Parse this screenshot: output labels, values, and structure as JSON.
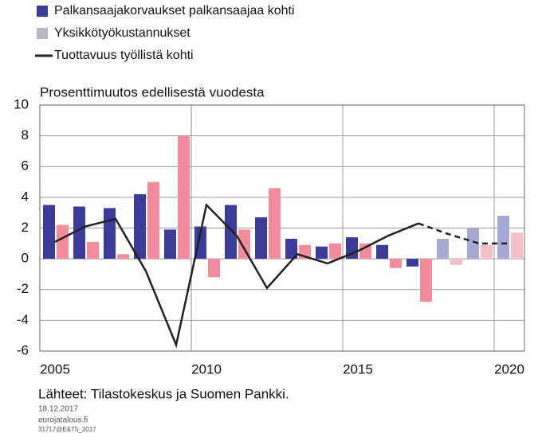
{
  "chart_data": {
    "type": "bar_line",
    "y_axis_title": "Prosenttimuutos edellisestä vuodesta",
    "categories": [
      "2005",
      null,
      null,
      null,
      null,
      "2010",
      null,
      null,
      null,
      null,
      "2015",
      null,
      null,
      null,
      null,
      "2020"
    ],
    "series": [
      {
        "name": "Palkansaajakorvaukset palkansaajaa kohti",
        "type": "bar",
        "color": "#3b3b98",
        "forecast_color": "#a9a9d6",
        "values": [
          3.5,
          3.4,
          3.3,
          4.2,
          1.9,
          2.1,
          3.5,
          2.7,
          1.3,
          0.8,
          1.4,
          0.9,
          -0.5,
          1.3,
          2.0,
          2.8
        ]
      },
      {
        "name": "Yksikkötyökustannukset",
        "type": "bar",
        "color": "#f28b9b",
        "forecast_color": "#f3c0c8",
        "legend_color": "#b8b8c4",
        "values": [
          2.2,
          1.1,
          0.3,
          5.0,
          8.0,
          -1.2,
          1.9,
          4.6,
          0.9,
          1.0,
          1.0,
          -0.6,
          -2.8,
          -0.4,
          0.9,
          1.7
        ]
      },
      {
        "name": "Tuottavuus työllistä kohti",
        "type": "line",
        "color": "#222222",
        "values": [
          1.1,
          2.1,
          2.6,
          -0.8,
          -5.6,
          3.5,
          1.5,
          -1.9,
          0.3,
          -0.3,
          0.5,
          1.5,
          2.3,
          1.6,
          1.0,
          1.0
        ]
      }
    ],
    "forecast_from_index": 13,
    "ylim": [
      -6,
      10
    ],
    "yticks": [
      -6,
      -4,
      -2,
      0,
      2,
      4,
      6,
      8,
      10
    ],
    "grid": true,
    "source": "Lähteet: Tilastokeskus ja Suomen Pankki.",
    "notes": [
      "18.12.2017",
      "eurojatalous.fi",
      "31717@E&T5_2017"
    ]
  }
}
